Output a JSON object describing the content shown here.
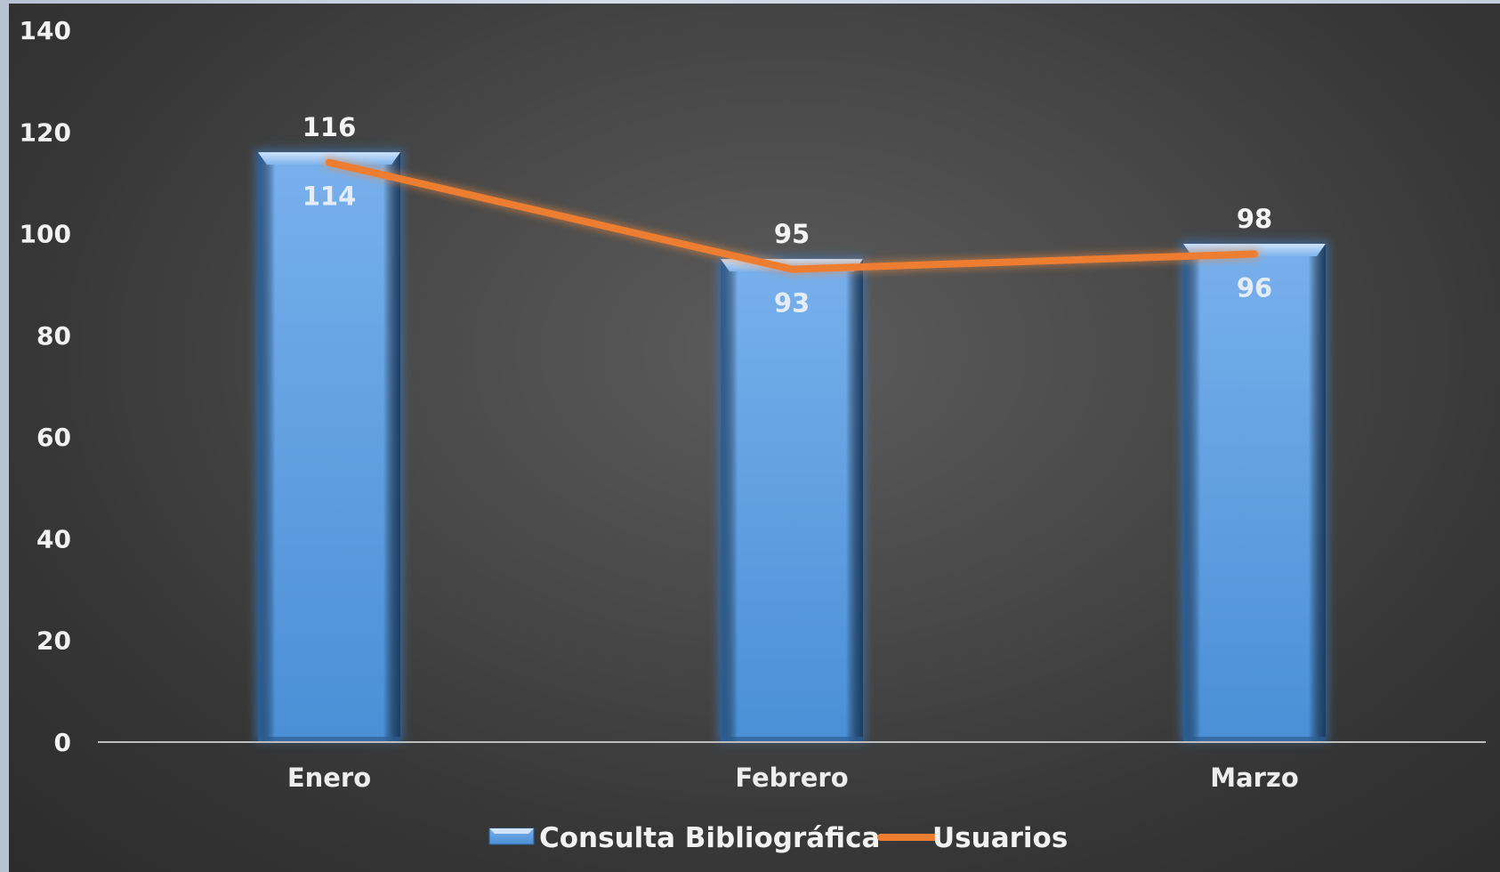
{
  "chart_data": {
    "type": "bar",
    "categories": [
      "Enero",
      "Febrero",
      "Marzo"
    ],
    "series": [
      {
        "name": "Consulta Bibliográfica",
        "type": "bar",
        "values": [
          116,
          95,
          98
        ],
        "color": "#5b9bd5"
      },
      {
        "name": "Usuarios",
        "type": "line",
        "values": [
          114,
          93,
          96
        ],
        "color": "#ed7d31"
      }
    ],
    "ylim": [
      0,
      140
    ],
    "yticks": [
      0,
      20,
      40,
      60,
      80,
      100,
      120,
      140
    ],
    "grid": false,
    "legend_position": "bottom"
  }
}
